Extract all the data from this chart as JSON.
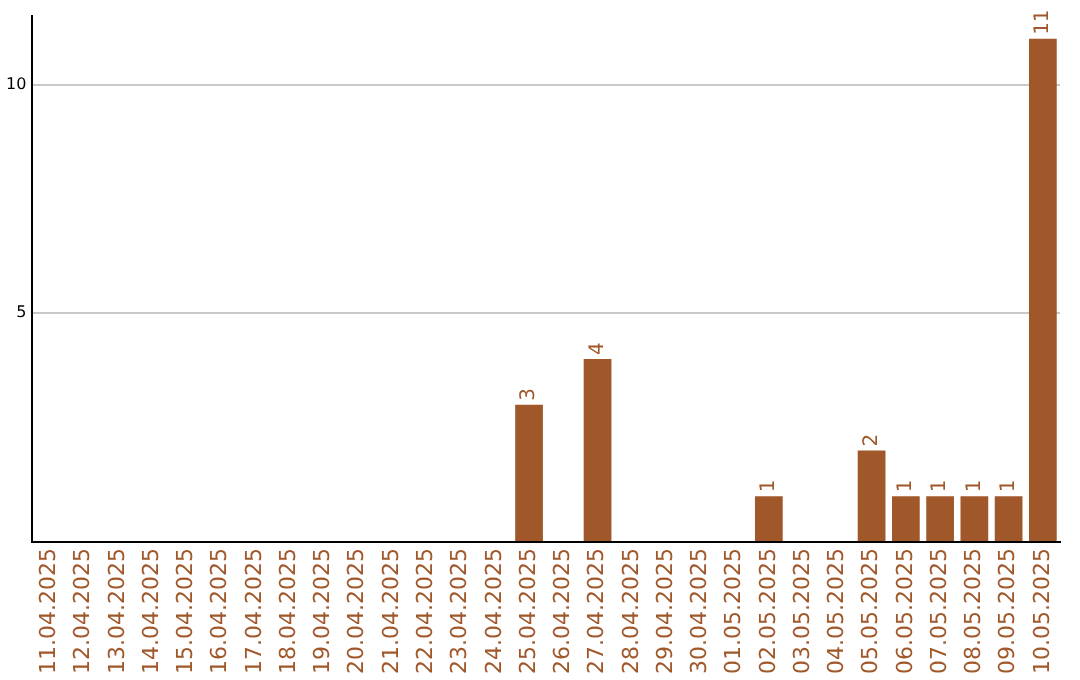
{
  "chart_data": {
    "type": "bar",
    "categories": [
      "11.04.2025",
      "12.04.2025",
      "13.04.2025",
      "14.04.2025",
      "15.04.2025",
      "16.04.2025",
      "17.04.2025",
      "18.04.2025",
      "19.04.2025",
      "20.04.2025",
      "21.04.2025",
      "22.04.2025",
      "23.04.2025",
      "24.04.2025",
      "25.04.2025",
      "26.04.2025",
      "27.04.2025",
      "28.04.2025",
      "29.04.2025",
      "30.04.2025",
      "01.05.2025",
      "02.05.2025",
      "03.05.2025",
      "04.05.2025",
      "05.05.2025",
      "06.05.2025",
      "07.05.2025",
      "08.05.2025",
      "09.05.2025",
      "10.05.2025"
    ],
    "values": [
      0,
      0,
      0,
      0,
      0,
      0,
      0,
      0,
      0,
      0,
      0,
      0,
      0,
      0,
      3,
      0,
      4,
      0,
      0,
      0,
      0,
      1,
      0,
      0,
      2,
      1,
      1,
      1,
      1,
      11
    ],
    "value_labels": [
      null,
      null,
      null,
      null,
      null,
      null,
      null,
      null,
      null,
      null,
      null,
      null,
      null,
      null,
      "3",
      null,
      "4",
      null,
      null,
      null,
      null,
      "1",
      null,
      null,
      "2",
      "1",
      "1",
      "1",
      "1",
      "11"
    ],
    "color": "#a0582a",
    "ylim": [
      0,
      11.5
    ],
    "yticks": [
      {
        "value": 0,
        "label": null
      },
      5,
      10
    ],
    "grid": "y",
    "legend": false
  }
}
